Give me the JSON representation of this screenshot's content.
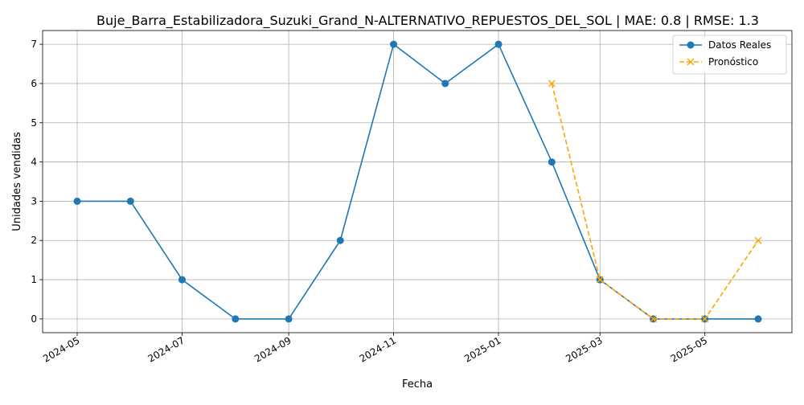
{
  "chart_data": {
    "type": "line",
    "title": "Buje_Barra_Estabilizadora_Suzuki_Grand_N-ALTERNATIVO_REPUESTOS_DEL_SOL | MAE: 0.8 | RMSE: 1.3",
    "xlabel": "Fecha",
    "ylabel": "Unidades vendidas",
    "x_ticks": [
      "2024-05",
      "2024-07",
      "2024-09",
      "2024-11",
      "2025-01",
      "2025-03",
      "2025-05"
    ],
    "y_ticks": [
      0,
      1,
      2,
      3,
      4,
      5,
      6,
      7
    ],
    "ylim": [
      -0.35,
      7.35
    ],
    "grid": true,
    "legend_position": "top-right",
    "series": [
      {
        "name": "Datos Reales",
        "color": "#1f77b4",
        "line_style": "solid",
        "marker": "circle",
        "x": [
          "2024-05-01",
          "2024-06-01",
          "2024-07-01",
          "2024-08-01",
          "2024-09-01",
          "2024-10-01",
          "2024-11-01",
          "2024-12-01",
          "2025-01-01",
          "2025-02-01",
          "2025-03-01",
          "2025-04-01",
          "2025-05-01",
          "2025-06-01"
        ],
        "values": [
          3,
          3,
          1,
          0,
          0,
          2,
          7,
          6,
          7,
          4,
          1,
          0,
          0,
          0
        ]
      },
      {
        "name": "Pronóstico",
        "color": "#ffa500",
        "line_style": "dashed",
        "marker": "x",
        "x": [
          "2025-02-01",
          "2025-03-01",
          "2025-04-01",
          "2025-05-01",
          "2025-06-01"
        ],
        "values": [
          6,
          1,
          0,
          0,
          2
        ]
      }
    ]
  }
}
